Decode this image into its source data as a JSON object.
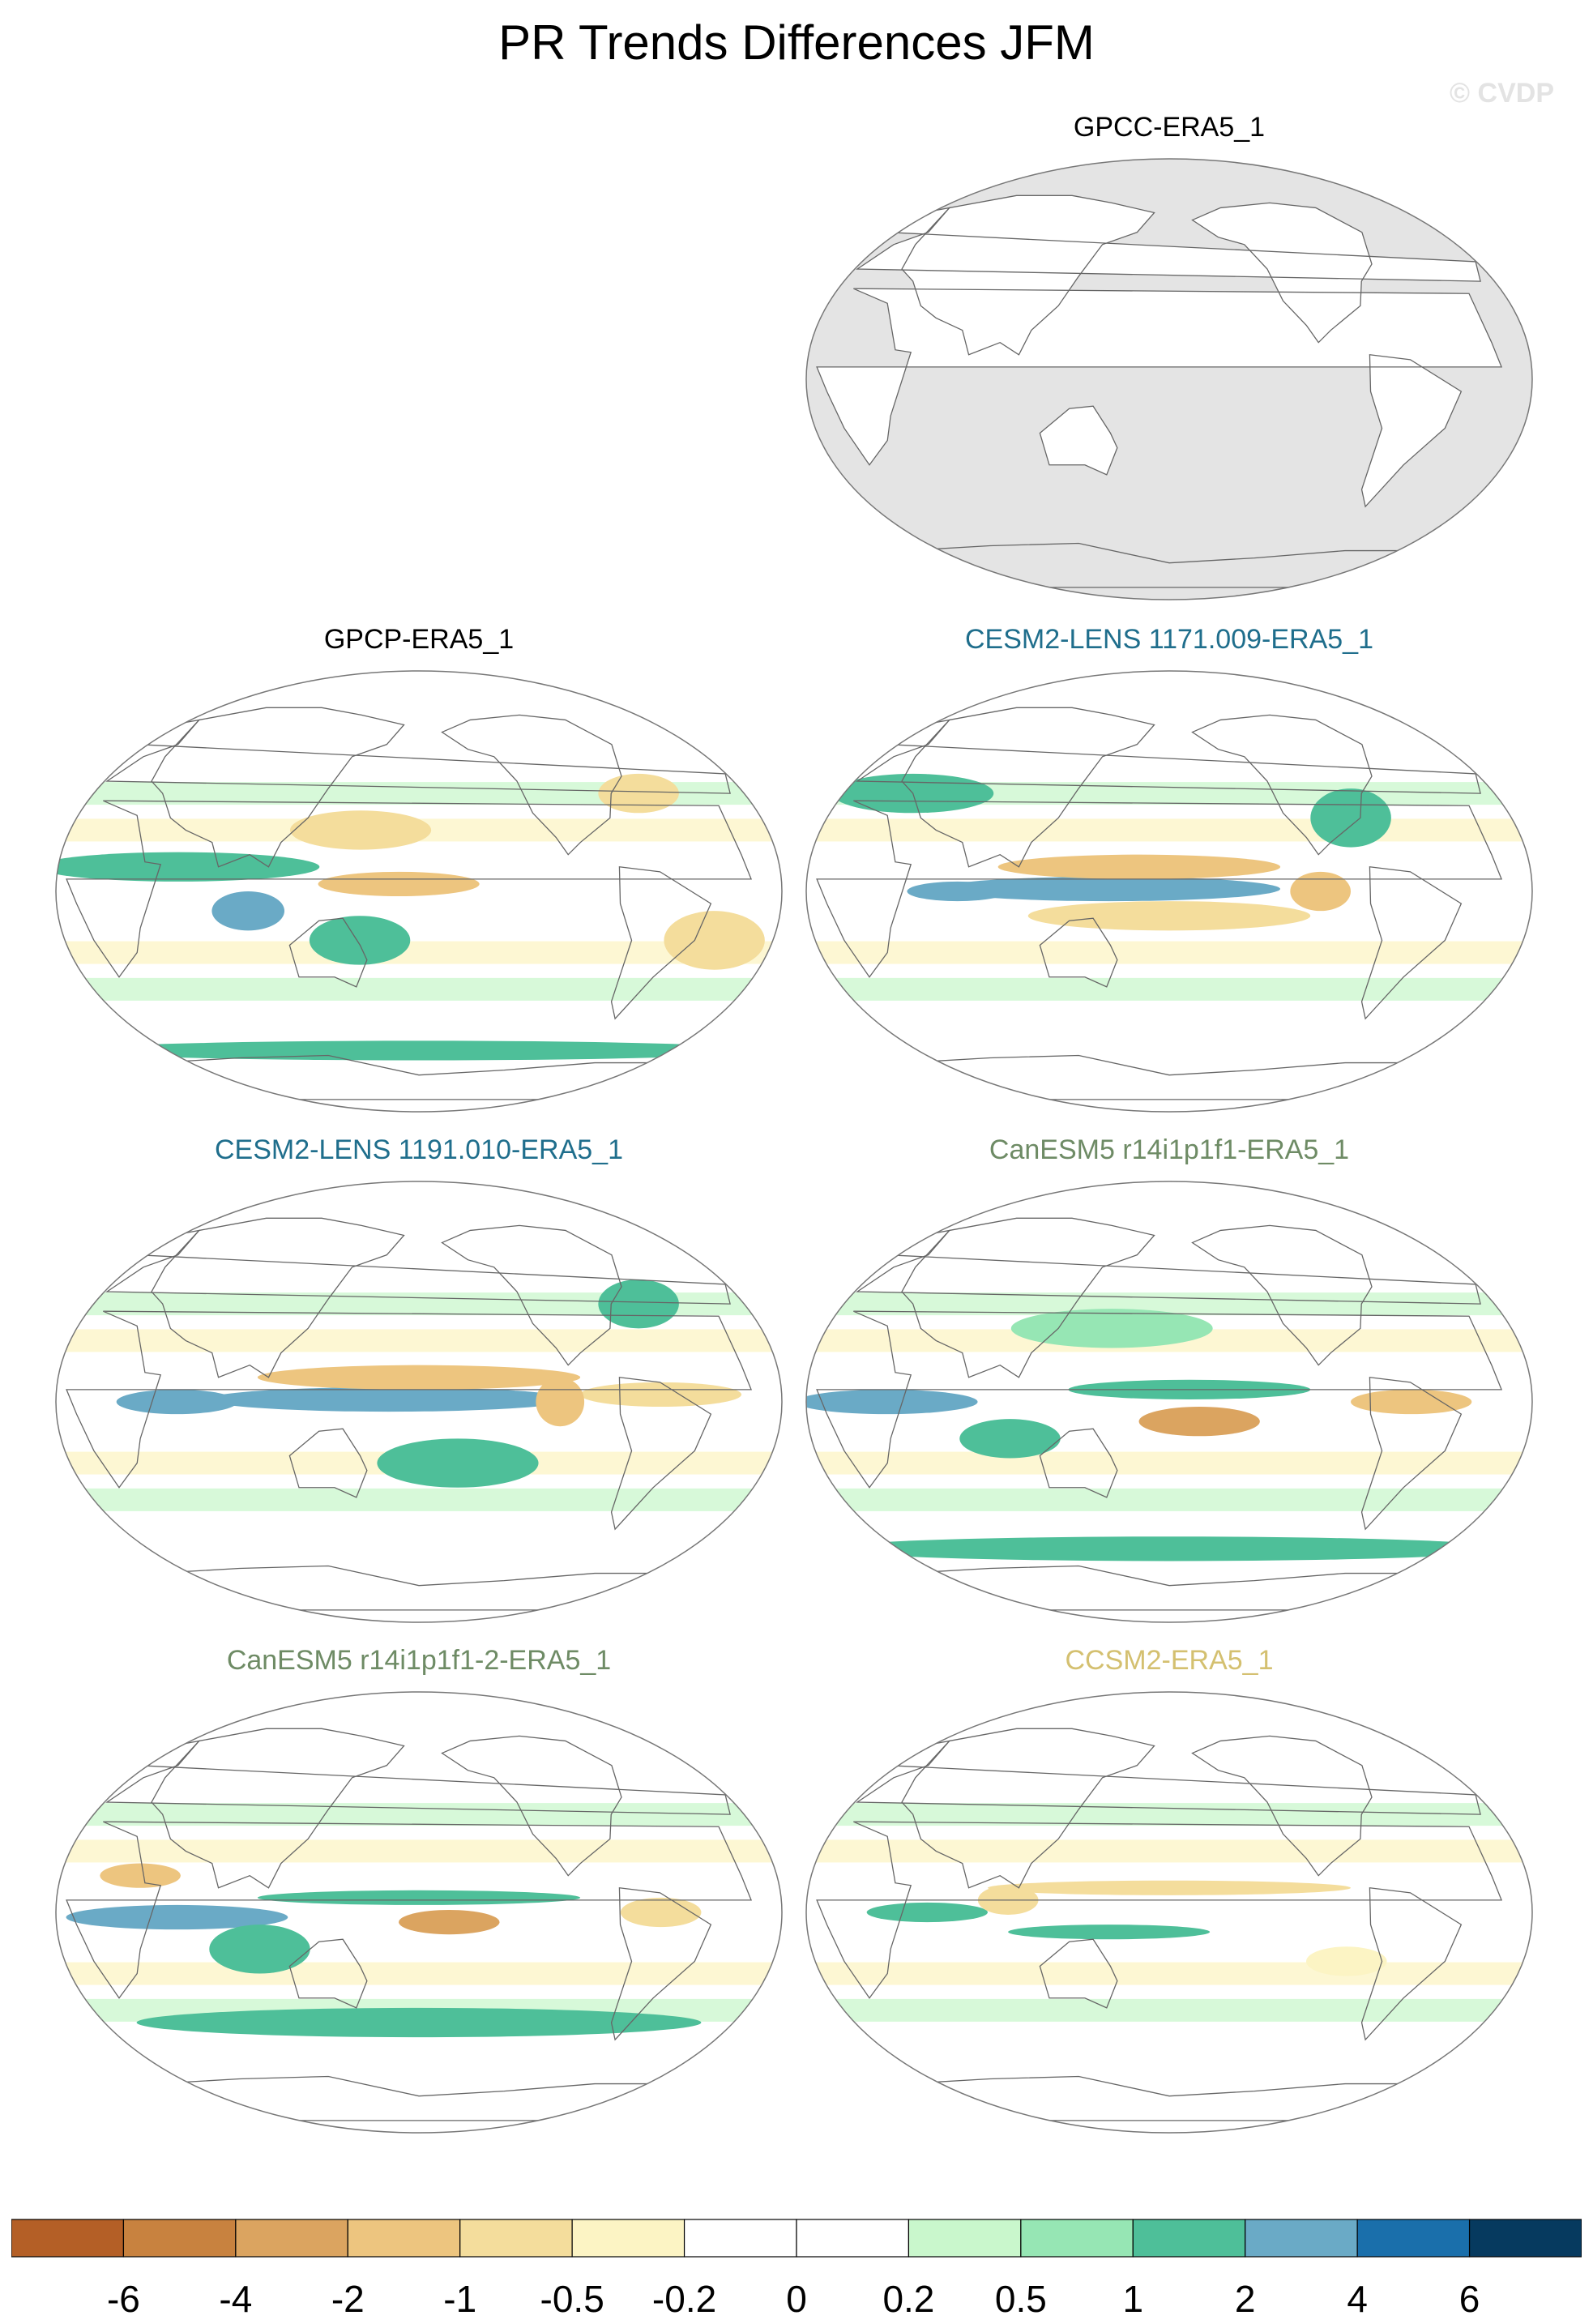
{
  "figure": {
    "title": "PR Trends Differences JFM",
    "watermark": "© CVDP"
  },
  "chart_data": {
    "type": "heatmap",
    "projection": "robinson-pacific-centered",
    "land_mask_color": "#e4e4e4",
    "panels": [
      {
        "id": "p1",
        "title": "GPCC-ERA5_1",
        "title_color": "#000000",
        "land_only": true,
        "features": []
      },
      {
        "id": "p2",
        "title": "GPCP-ERA5_1",
        "title_color": "#000000",
        "land_only": false,
        "features": [
          {
            "lon": 60,
            "lat": 10,
            "rx": 70,
            "ry": 6,
            "level": 1.5
          },
          {
            "lon": 95,
            "lat": -8,
            "rx": 18,
            "ry": 8,
            "level": 3
          },
          {
            "lon": 170,
            "lat": 3,
            "rx": 40,
            "ry": 5,
            "level": -2
          },
          {
            "lon": 150,
            "lat": 25,
            "rx": 35,
            "ry": 8,
            "level": -1
          },
          {
            "lon": 150,
            "lat": -20,
            "rx": 25,
            "ry": 10,
            "level": 1
          },
          {
            "lon": 180,
            "lat": -65,
            "rx": 170,
            "ry": 4,
            "level": 1.5
          },
          {
            "lon": 330,
            "lat": -20,
            "rx": 25,
            "ry": 12,
            "level": -1
          },
          {
            "lon": 300,
            "lat": 40,
            "rx": 20,
            "ry": 8,
            "level": -0.6
          }
        ]
      },
      {
        "id": "p3",
        "title": "CESM2-LENS 1171.009-ERA5_1",
        "title_color": "#1f6e8c",
        "land_only": false,
        "features": [
          {
            "lon": 180,
            "lat": 1,
            "rx": 55,
            "ry": 2.5,
            "level": 7
          },
          {
            "lon": 150,
            "lat": 1,
            "rx": 85,
            "ry": 5,
            "level": 3
          },
          {
            "lon": 165,
            "lat": 10,
            "rx": 70,
            "ry": 5,
            "level": -2
          },
          {
            "lon": 180,
            "lat": -10,
            "rx": 70,
            "ry": 6,
            "level": -1
          },
          {
            "lon": 75,
            "lat": 0,
            "rx": 25,
            "ry": 4,
            "level": 2.5
          },
          {
            "lon": 255,
            "lat": 0,
            "rx": 15,
            "ry": 8,
            "level": -1.5
          },
          {
            "lon": 275,
            "lat": 30,
            "rx": 20,
            "ry": 12,
            "level": 1.5
          },
          {
            "lon": 40,
            "lat": 40,
            "rx": 40,
            "ry": 8,
            "level": 1
          }
        ]
      },
      {
        "id": "p4",
        "title": "CESM2-LENS 1191.010-ERA5_1",
        "title_color": "#1f6e8c",
        "land_only": false,
        "features": [
          {
            "lon": 180,
            "lat": 1,
            "rx": 60,
            "ry": 3,
            "level": 7
          },
          {
            "lon": 165,
            "lat": 1,
            "rx": 90,
            "ry": 5,
            "level": 3
          },
          {
            "lon": 180,
            "lat": 10,
            "rx": 80,
            "ry": 5,
            "level": -1.5
          },
          {
            "lon": 60,
            "lat": 0,
            "rx": 30,
            "ry": 5,
            "level": 2
          },
          {
            "lon": 300,
            "lat": 3,
            "rx": 40,
            "ry": 5,
            "level": -1
          },
          {
            "lon": 250,
            "lat": 0,
            "rx": 12,
            "ry": 10,
            "level": -1.5
          },
          {
            "lon": 200,
            "lat": -25,
            "rx": 40,
            "ry": 10,
            "level": 1
          },
          {
            "lon": 300,
            "lat": 40,
            "rx": 20,
            "ry": 10,
            "level": 1
          }
        ]
      },
      {
        "id": "p5",
        "title": "CanESM5 r14i1p1f1-ERA5_1",
        "title_color": "#6e8b65",
        "land_only": false,
        "features": [
          {
            "lon": 195,
            "lat": -8,
            "rx": 30,
            "ry": 6,
            "level": -3
          },
          {
            "lon": 190,
            "lat": 5,
            "rx": 60,
            "ry": 4,
            "level": 1.5
          },
          {
            "lon": 40,
            "lat": 0,
            "rx": 45,
            "ry": 5,
            "level": 2.5
          },
          {
            "lon": 300,
            "lat": 0,
            "rx": 30,
            "ry": 5,
            "level": -2
          },
          {
            "lon": 100,
            "lat": -15,
            "rx": 25,
            "ry": 8,
            "level": 1
          },
          {
            "lon": 180,
            "lat": -60,
            "rx": 170,
            "ry": 5,
            "level": 1
          },
          {
            "lon": 150,
            "lat": 30,
            "rx": 50,
            "ry": 8,
            "level": 0.7
          }
        ]
      },
      {
        "id": "p6",
        "title": "CanESM5 r14i1p1f1-2-ERA5_1",
        "title_color": "#6e8b65",
        "land_only": false,
        "features": [
          {
            "lon": 195,
            "lat": -4,
            "rx": 25,
            "ry": 5,
            "level": -3
          },
          {
            "lon": 180,
            "lat": 6,
            "rx": 80,
            "ry": 3,
            "level": 1.5
          },
          {
            "lon": 60,
            "lat": -2,
            "rx": 55,
            "ry": 5,
            "level": 2.5
          },
          {
            "lon": 100,
            "lat": -15,
            "rx": 25,
            "ry": 10,
            "level": 1.5
          },
          {
            "lon": 300,
            "lat": 0,
            "rx": 20,
            "ry": 6,
            "level": -1
          },
          {
            "lon": 180,
            "lat": -45,
            "rx": 140,
            "ry": 6,
            "level": 1
          },
          {
            "lon": 40,
            "lat": 15,
            "rx": 20,
            "ry": 5,
            "level": -1.5
          }
        ]
      },
      {
        "id": "p7",
        "title": "CCSM2-ERA5_1",
        "title_color": "#d4c070",
        "land_only": false,
        "features": [
          {
            "lon": 180,
            "lat": 10,
            "rx": 90,
            "ry": 3,
            "level": -0.6
          },
          {
            "lon": 150,
            "lat": -8,
            "rx": 50,
            "ry": 3,
            "level": 1.5
          },
          {
            "lon": 60,
            "lat": 0,
            "rx": 30,
            "ry": 4,
            "level": 1
          },
          {
            "lon": 270,
            "lat": -20,
            "rx": 20,
            "ry": 6,
            "level": -0.4
          },
          {
            "lon": 100,
            "lat": 5,
            "rx": 15,
            "ry": 6,
            "level": -1
          }
        ]
      }
    ],
    "colorbar": {
      "colors": [
        "#b45f26",
        "#c8823f",
        "#dba460",
        "#edc57f",
        "#f4dd9c",
        "#fcf4c4",
        "#ffffff",
        "#ffffff",
        "#c9f7cc",
        "#96e6b4",
        "#4ebf99",
        "#6aaac6",
        "#1a6fab",
        "#063a5f"
      ],
      "labels": [
        "-6",
        "-4",
        "-2",
        "-1",
        "-0.5",
        "-0.2",
        "0",
        "0.2",
        "0.5",
        "1",
        "2",
        "4",
        "6"
      ],
      "bounds": [
        -8,
        -6,
        -4,
        -2,
        -1,
        -0.5,
        -0.2,
        0,
        0.2,
        0.5,
        1,
        2,
        4,
        6,
        8
      ]
    }
  }
}
